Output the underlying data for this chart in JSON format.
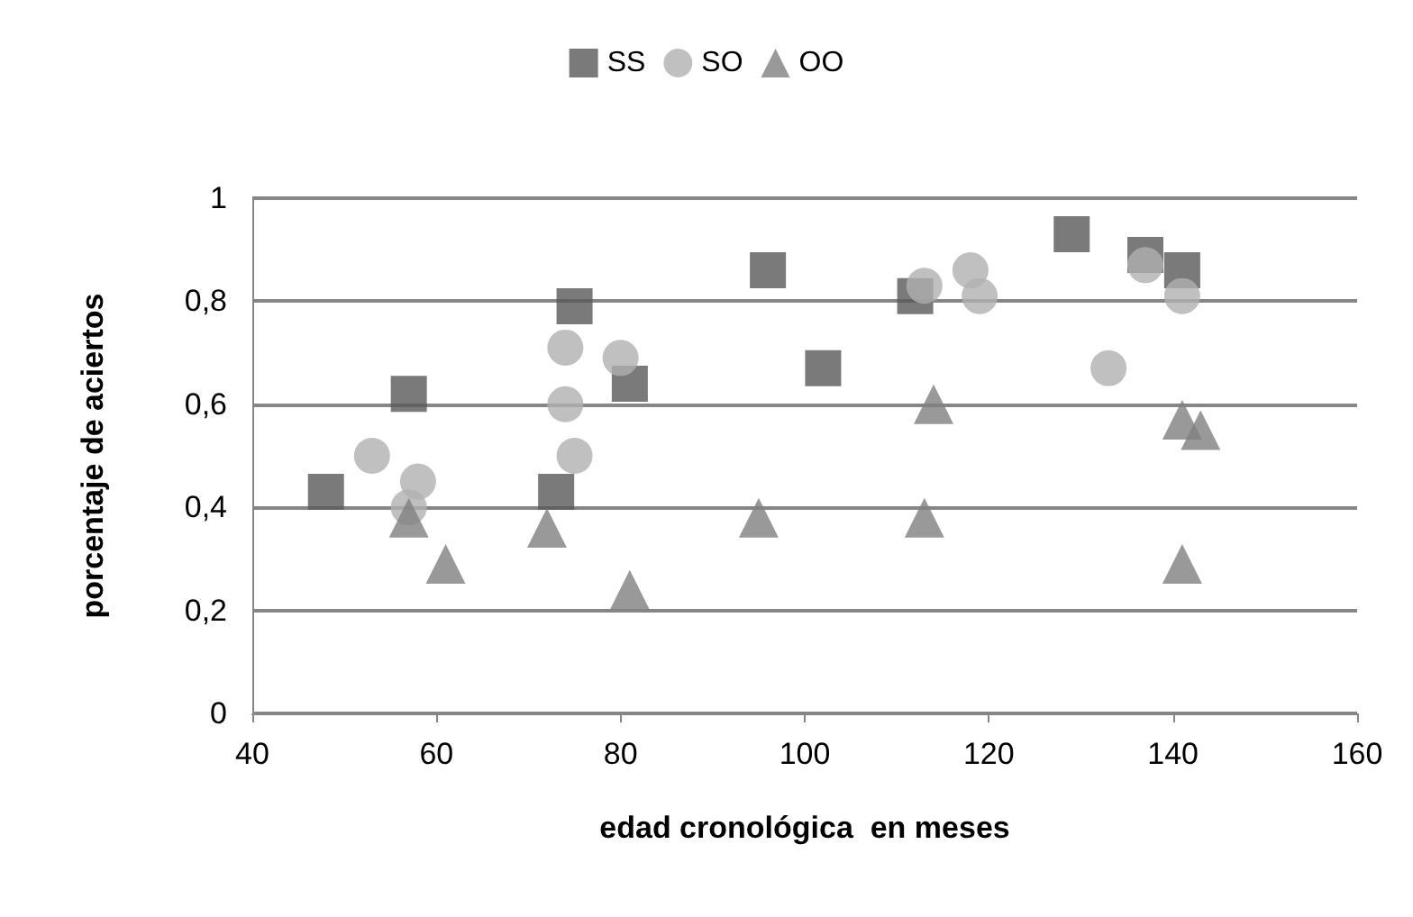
{
  "chart_data": {
    "type": "scatter",
    "xlabel": "edad cronológica  en meses",
    "ylabel": "porcentaje de aciertos",
    "series": [
      {
        "name": "SS",
        "color": "#595959",
        "marker": "square",
        "x": [
          48,
          57,
          73,
          75,
          81,
          96,
          102,
          112,
          129,
          137,
          141
        ],
        "values": [
          0.43,
          0.62,
          0.43,
          0.79,
          0.64,
          0.86,
          0.67,
          0.81,
          0.93,
          0.89,
          0.86
        ]
      },
      {
        "name": "SO",
        "color": "#b0b0b0",
        "marker": "circle",
        "x": [
          53,
          57,
          58,
          74,
          74,
          75,
          80,
          113,
          118,
          119,
          133,
          137,
          141
        ],
        "values": [
          0.5,
          0.4,
          0.45,
          0.71,
          0.6,
          0.5,
          0.69,
          0.83,
          0.86,
          0.81,
          0.67,
          0.87,
          0.81
        ]
      },
      {
        "name": "OO",
        "color": "#7f7f7f",
        "marker": "triangle",
        "x": [
          57,
          61,
          72,
          81,
          95,
          113,
          114,
          141,
          143,
          141
        ],
        "values": [
          0.38,
          0.29,
          0.36,
          0.24,
          0.38,
          0.38,
          0.6,
          0.57,
          0.55,
          0.29
        ]
      }
    ],
    "xlim": [
      40,
      160
    ],
    "xticks": [
      40,
      60,
      80,
      100,
      120,
      140,
      160
    ],
    "ylim": [
      0,
      1
    ],
    "yticks": [
      0,
      {
        "value": 0.2,
        "label": "0,2"
      },
      {
        "value": 0.4,
        "label": "0,4"
      },
      {
        "value": 0.6,
        "label": "0,6"
      },
      {
        "value": 0.8,
        "label": "0,8"
      },
      1
    ],
    "grid": "y",
    "legend": "top"
  }
}
